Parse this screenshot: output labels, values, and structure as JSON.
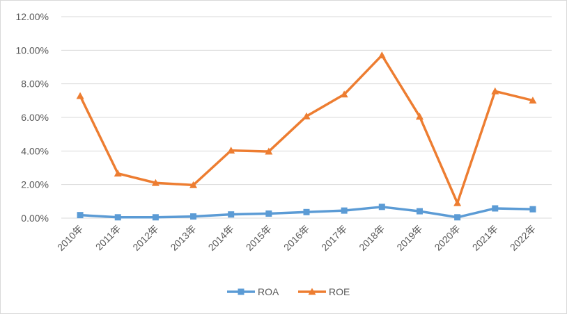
{
  "chart_data": {
    "type": "line",
    "categories": [
      "2010年",
      "2011年",
      "2012年",
      "2013年",
      "2014年",
      "2015年",
      "2016年",
      "2017年",
      "2018年",
      "2019年",
      "2020年",
      "2021年",
      "2022年"
    ],
    "series": [
      {
        "name": "ROA",
        "color": "#5B9BD5",
        "marker": "square",
        "values": [
          0.0018,
          0.0005,
          0.0005,
          0.001,
          0.0022,
          0.0027,
          0.0036,
          0.0045,
          0.0067,
          0.0041,
          0.0005,
          0.0058,
          0.0053
        ]
      },
      {
        "name": "ROE",
        "color": "#ED7D31",
        "marker": "triangle",
        "values": [
          0.0728,
          0.0266,
          0.021,
          0.0197,
          0.0403,
          0.0397,
          0.0607,
          0.0737,
          0.097,
          0.0605,
          0.009,
          0.0756,
          0.0701
        ]
      }
    ],
    "y_ticks": [
      "0.00%",
      "2.00%",
      "4.00%",
      "6.00%",
      "8.00%",
      "10.00%",
      "12.00%"
    ],
    "ylim": [
      0,
      0.12
    ],
    "grid": true,
    "legend_position": "bottom",
    "gridline_color": "#d9d9d9"
  }
}
